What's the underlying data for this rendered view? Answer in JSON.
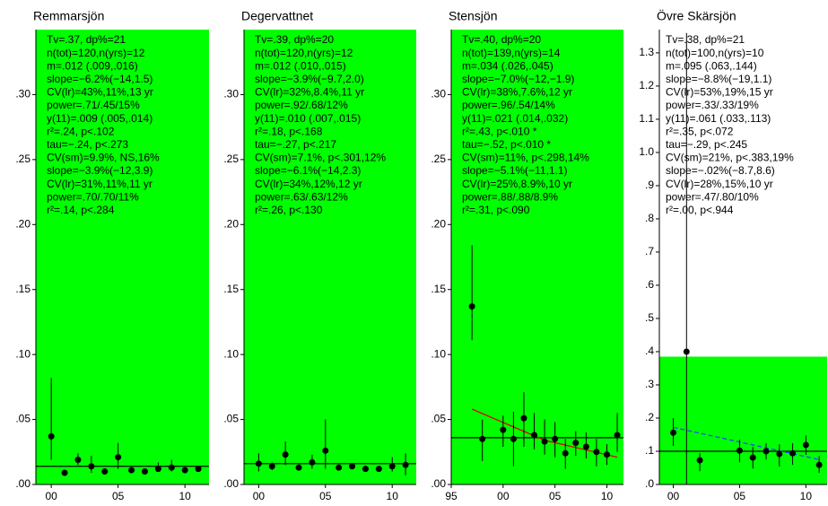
{
  "chart_data": [
    {
      "type": "scatter",
      "title": "Remmarsjön",
      "x": [
        0,
        1,
        2,
        3,
        4,
        5,
        6,
        7,
        8,
        9,
        10,
        11
      ],
      "values": [
        0.037,
        0.009,
        0.019,
        0.014,
        0.01,
        0.021,
        0.011,
        0.01,
        0.012,
        0.013,
        0.011,
        0.012
      ],
      "lower": [
        0.019,
        0.007,
        0.015,
        0.009,
        0.008,
        0.012,
        0.009,
        0.008,
        0.01,
        0.01,
        0.009,
        0.01
      ],
      "upper": [
        0.082,
        0.011,
        0.024,
        0.022,
        0.012,
        0.032,
        0.013,
        0.012,
        0.017,
        0.019,
        0.013,
        0.014
      ],
      "mean_line": 0.014,
      "band": [
        0,
        0.35
      ],
      "band_color": "#00ff00",
      "color": "#000000",
      "xlim": [
        -1.15,
        11.8
      ],
      "ylim": [
        0,
        0.35
      ],
      "xticks": [
        {
          "value": 0,
          "label": "00"
        },
        {
          "value": 5,
          "label": "05"
        },
        10
      ],
      "yticks": [
        {
          "value": 0,
          "label": ".00"
        },
        {
          "value": 0.05,
          "label": ".05"
        },
        {
          "value": 0.1,
          "label": ".10"
        },
        {
          "value": 0.15,
          "label": ".15"
        },
        {
          "value": 0.2,
          "label": ".20"
        },
        {
          "value": 0.25,
          "label": ".25"
        },
        {
          "value": 0.3,
          "label": ".30"
        }
      ],
      "stats": [
        "Tv=.37, dp%=21",
        "n(tot)=120,n(yrs)=12",
        "m=.012 (.009,.016)",
        "slope=−6.2%(−14,1.5)",
        "CV(lr)=43%,11%,13 yr",
        "power=.71/.45/15%",
        "y(11)=.009 (.005,.014)",
        "r²=.24, p<.102",
        "tau=−.24, p<.273",
        "CV(sm)=9.9%, NS,16%",
        "slope=−3.9%(−12,3.9)",
        "CV(lr)=31%,11%,11 yr",
        "power=.70/.70/11%",
        "r²=.14, p<.284"
      ]
    },
    {
      "type": "scatter",
      "title": "Degervattnet",
      "x": [
        0,
        1,
        2,
        3,
        4,
        5,
        6,
        7,
        8,
        9,
        10,
        11
      ],
      "values": [
        0.016,
        0.014,
        0.023,
        0.013,
        0.017,
        0.026,
        0.013,
        0.014,
        0.012,
        0.012,
        0.014,
        0.015
      ],
      "lower": [
        0.01,
        0.011,
        0.015,
        0.011,
        0.012,
        0.012,
        0.011,
        0.012,
        0.01,
        0.01,
        0.01,
        0.007
      ],
      "upper": [
        0.024,
        0.017,
        0.033,
        0.015,
        0.023,
        0.05,
        0.015,
        0.016,
        0.014,
        0.014,
        0.021,
        0.024
      ],
      "mean_line": 0.016,
      "band": [
        0,
        0.35
      ],
      "band_color": "#00ff00",
      "color": "#000000",
      "xlim": [
        -1.1,
        11.8
      ],
      "ylim": [
        0,
        0.35
      ],
      "xticks": [
        {
          "value": 0,
          "label": "00"
        },
        {
          "value": 5,
          "label": "05"
        },
        10
      ],
      "yticks": [
        {
          "value": 0,
          "label": ".00"
        },
        {
          "value": 0.05,
          "label": ".05"
        },
        {
          "value": 0.1,
          "label": ".10"
        },
        {
          "value": 0.15,
          "label": ".15"
        },
        {
          "value": 0.2,
          "label": ".20"
        },
        {
          "value": 0.25,
          "label": ".25"
        },
        {
          "value": 0.3,
          "label": ".30"
        }
      ],
      "stats": [
        "Tv=.39, dp%=20",
        "n(tot)=120,n(yrs)=12",
        "m=.012 (.010,.015)",
        "slope=−3.9%(−9.7,2.0)",
        "CV(lr)=32%,8.4%,11 yr",
        "power=.92/.68/12%",
        "y(11)=.010 (.007,.015)",
        "r²=.18, p<.168",
        "tau=−.27, p<.217",
        "CV(sm)=7.1%, p<.301,12%",
        "slope=−6.1%(−14,2.3)",
        "CV(lr)=34%,12%,12 yr",
        "power=.63/.63/12%",
        "r²=.26, p<.130"
      ]
    },
    {
      "type": "scatter",
      "title": "Stensjön",
      "x": [
        1997,
        1998,
        2000,
        2001,
        2002,
        2003,
        2004,
        2005,
        2006,
        2007,
        2008,
        2009,
        2010,
        2011
      ],
      "values": [
        0.137,
        0.035,
        0.042,
        0.035,
        0.051,
        0.038,
        0.033,
        0.035,
        0.024,
        0.032,
        0.029,
        0.025,
        0.023,
        0.038
      ],
      "lower": [
        0.111,
        0.018,
        0.029,
        0.014,
        0.029,
        0.027,
        0.023,
        0.021,
        0.012,
        0.022,
        0.02,
        0.014,
        0.015,
        0.025
      ],
      "upper": [
        0.184,
        0.05,
        0.053,
        0.056,
        0.071,
        0.055,
        0.05,
        0.048,
        0.035,
        0.041,
        0.04,
        0.035,
        0.031,
        0.055
      ],
      "mean_line": 0.036,
      "band": [
        0,
        0.35
      ],
      "band_color": "#00ff00",
      "color": "#000000",
      "trend": {
        "x": [
          1997,
          2004,
          2011
        ],
        "values": [
          0.058,
          0.034,
          0.021
        ],
        "color": "#dd0000"
      },
      "xlim": [
        1995,
        2011.6
      ],
      "ylim": [
        0,
        0.35
      ],
      "xticks": [
        {
          "value": 1995,
          "label": "95"
        },
        {
          "value": 2000,
          "label": "00"
        },
        {
          "value": 2005,
          "label": "05"
        },
        {
          "value": 2010,
          "label": "10"
        }
      ],
      "yticks": [
        {
          "value": 0,
          "label": ".00"
        },
        {
          "value": 0.05,
          "label": ".05"
        },
        {
          "value": 0.1,
          "label": ".10"
        },
        {
          "value": 0.15,
          "label": ".15"
        },
        {
          "value": 0.2,
          "label": ".20"
        },
        {
          "value": 0.25,
          "label": ".25"
        },
        {
          "value": 0.3,
          "label": ".30"
        }
      ],
      "stats": [
        "Tv=.40, dp%=20",
        "n(tot)=139,n(yrs)=14",
        "m=.034 (.026,.045)",
        "slope=−7.0%(−12,−1.9)",
        "CV(lr)=38%,7.6%,12 yr",
        "power=.96/.54/14%",
        "y(11)=.021 (.014,.032)",
        "r²=.43, p<.010 *",
        "tau=−.52, p<.010 *",
        "CV(sm)=11%, p<.298,14%",
        "slope=−5.1%(−11,1.1)",
        "CV(lr)=25%,8.9%,10 yr",
        "power=.88/.88/8.9%",
        "r²=.31, p<.090"
      ]
    },
    {
      "type": "scatter",
      "title": "Övre Skärsjön",
      "x": [
        0,
        1,
        2,
        5,
        6,
        7,
        8,
        9,
        10,
        11
      ],
      "values": [
        0.156,
        0.4,
        0.073,
        0.102,
        0.081,
        0.1,
        0.092,
        0.094,
        0.119,
        0.059
      ],
      "lower": [
        0.116,
        0,
        0.04,
        0.067,
        0.048,
        0.075,
        0.054,
        0.059,
        0.089,
        0.035
      ],
      "upper": [
        0.2,
        1.36,
        0.094,
        0.135,
        0.113,
        0.124,
        0.121,
        0.124,
        0.148,
        0.086
      ],
      "mean_line": 0.1,
      "band": [
        0,
        0.385
      ],
      "band_color": "#00ff00",
      "color": "#000000",
      "trend": {
        "x": [
          0,
          11
        ],
        "values": [
          0.172,
          0.075
        ],
        "color": "#2244ff",
        "dashed": true
      },
      "xlim": [
        -1.05,
        11.6
      ],
      "ylim": [
        0,
        1.37
      ],
      "xticks": [
        {
          "value": 0,
          "label": "00"
        },
        {
          "value": 5,
          "label": "05"
        },
        10
      ],
      "yticks": [
        {
          "value": 0,
          "label": ".0"
        },
        {
          "value": 0.1,
          "label": ".1"
        },
        {
          "value": 0.2,
          "label": ".2"
        },
        {
          "value": 0.3,
          "label": ".3"
        },
        {
          "value": 0.4,
          "label": ".4"
        },
        {
          "value": 0.5,
          "label": ".5"
        },
        {
          "value": 0.6,
          "label": ".6"
        },
        {
          "value": 0.7,
          "label": ".7"
        },
        {
          "value": 0.8,
          "label": ".8"
        },
        {
          "value": 0.9,
          "label": ".9"
        },
        {
          "value": 1,
          "label": "1.0"
        },
        1.1,
        1.2,
        1.3
      ],
      "stats": [
        "Tv=.38, dp%=21",
        "n(tot)=100,n(yrs)=10",
        "m=.095 (.063,.144)",
        "slope=−8.8%(−19,1.1)",
        "CV(lr)=53%,19%,15 yr",
        "power=.33/.33/19%",
        "y(11)=.061 (.033,.113)",
        "r²=.35, p<.072",
        "tau=−.29, p<.245",
        "CV(sm)=21%, p<.383,19%",
        "slope=−.02%(−8.7,8.6)",
        "CV(lr)=28%,15%,10 yr",
        "power=.47/.80/10%",
        "r²=.00, p<.944"
      ]
    }
  ]
}
